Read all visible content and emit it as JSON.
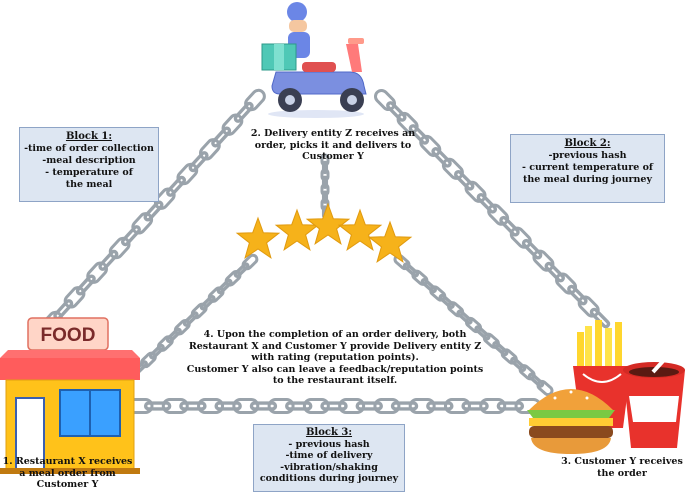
{
  "blocks": [
    {
      "title": "Block 1:",
      "lines": [
        "-time of order collection",
        "-meal description",
        "- temperature  of the meal"
      ]
    },
    {
      "title": "Block 2:",
      "lines": [
        "-previous hash",
        "- current temperature of",
        "the meal during journey"
      ]
    },
    {
      "title": "Block 3:",
      "lines": [
        "- previous  hash",
        "-time of delivery",
        "-vibration/shaking",
        "conditions during journey"
      ]
    }
  ],
  "nodes": {
    "restaurant": {
      "sign": "FOOD",
      "caption": [
        "1. Restaurant  X receives",
        "a meal order from",
        "Customer Y"
      ]
    },
    "delivery": {
      "caption": [
        "2. Delivery entity Z receives  an",
        "order, picks it and delivers to",
        "Customer Y"
      ]
    },
    "customer": {
      "caption": [
        "3. Customer  Y receives",
        "the order"
      ]
    }
  },
  "rating": {
    "star_count": 5,
    "lines": [
      "4. Upon the completion  of  an order delivery,  both",
      "Restaurant  X and Customer  Y provide Delivery  entity Z",
      "with rating (reputation points).",
      "Customer Y also can leave a feedback/reputation  points",
      "to the restaurant itself."
    ]
  },
  "colors": {
    "chain": "#9aa3ab",
    "block_fill": "#dde6f2",
    "block_border": "#8ea4c6",
    "star": "#f6b21a",
    "scooter": "#7b8fe0",
    "restaurant_wall": "#ffc21a",
    "restaurant_awning": "#ff5c5c"
  }
}
